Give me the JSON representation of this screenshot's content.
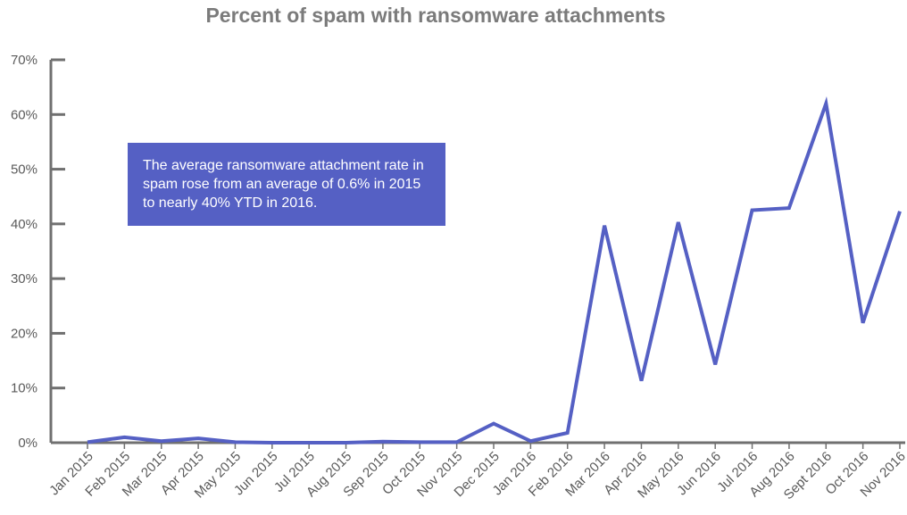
{
  "chart_data": {
    "type": "line",
    "title": "Percent of spam with ransomware attachments",
    "xlabel": "",
    "ylabel": "",
    "categories": [
      "Jan 2015",
      "Feb 2015",
      "Mar 2015",
      "Apr 2015",
      "May 2015",
      "Jun 2015",
      "Jul 2015",
      "Aug 2015",
      "Sep 2015",
      "Oct 2015",
      "Nov 2015",
      "Dec 2015",
      "Jan 2016",
      "Feb 2016",
      "Mar 2016",
      "Apr 2016",
      "May 2016",
      "Jun 2016",
      "Jul 2016",
      "Aug 2016",
      "Sept 2016",
      "Oct 2016",
      "Nov 2016"
    ],
    "series": [
      {
        "values": [
          0.1,
          1.0,
          0.3,
          0.8,
          0.1,
          0.0,
          0.0,
          0.0,
          0.2,
          0.1,
          0.1,
          3.5,
          0.3,
          1.8,
          39.7,
          11.3,
          40.3,
          14.3,
          42.5,
          42.9,
          62.0,
          21.9,
          42.3
        ]
      }
    ],
    "ylim": [
      0,
      70
    ],
    "yticks": [
      0,
      10,
      20,
      30,
      40,
      50,
      60,
      70
    ],
    "ytick_labels": [
      "0%",
      "10%",
      "20%",
      "30%",
      "40%",
      "50%",
      "60%",
      "70%"
    ],
    "grid": false,
    "line_color": "#5560c4",
    "annotation": "The average ransomware attachment rate in spam rose from an average of 0.6% in 2015 to nearly 40% YTD in 2016."
  }
}
